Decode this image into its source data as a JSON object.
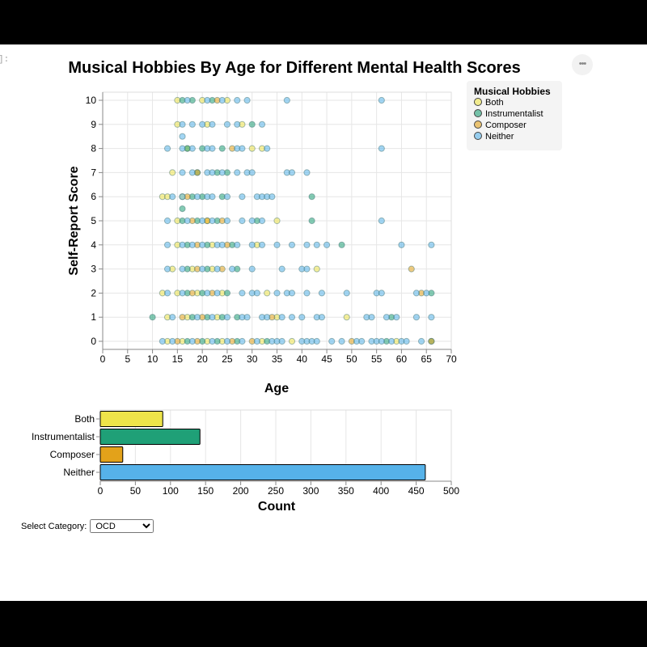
{
  "notebook": {
    "cell_prompt": "]:",
    "actions_label": "•••"
  },
  "colors": {
    "Both": "#eee44a",
    "Instrumentalist": "#1fa077",
    "Composer": "#e3a21a",
    "Neither": "#56b2e9"
  },
  "chart_data": [
    {
      "type": "scatter",
      "title": "Musical Hobbies By Age for Different Mental Health Scores",
      "xlabel": "Age",
      "ylabel": "Self-Report Score",
      "xlim": [
        0,
        70
      ],
      "ylim": [
        0,
        10
      ],
      "xticks": [
        0,
        5,
        10,
        15,
        20,
        25,
        30,
        35,
        40,
        45,
        50,
        55,
        60,
        65,
        70
      ],
      "yticks": [
        0,
        1,
        2,
        3,
        4,
        5,
        6,
        7,
        8,
        9,
        10
      ],
      "grid": true,
      "legend": {
        "title": "Musical Hobbies",
        "entries": [
          "Both",
          "Instrumentalist",
          "Composer",
          "Neither"
        ],
        "placement": "top-right"
      },
      "series": [
        {
          "name": "Both",
          "points": [
            [
              15,
              10
            ],
            [
              20,
              10
            ],
            [
              25,
              10
            ],
            [
              15,
              9
            ],
            [
              21,
              9
            ],
            [
              28,
              9
            ],
            [
              32,
              8
            ],
            [
              30,
              8
            ],
            [
              17,
              8
            ],
            [
              14,
              7
            ],
            [
              12,
              6
            ],
            [
              13,
              6
            ],
            [
              16,
              6
            ],
            [
              15,
              5
            ],
            [
              21,
              5
            ],
            [
              35,
              5
            ],
            [
              15,
              4
            ],
            [
              22,
              4
            ],
            [
              31,
              4
            ],
            [
              14,
              3
            ],
            [
              18,
              3
            ],
            [
              22,
              3
            ],
            [
              43,
              3
            ],
            [
              12,
              2
            ],
            [
              15,
              2
            ],
            [
              19,
              2
            ],
            [
              24,
              2
            ],
            [
              33,
              2
            ],
            [
              13,
              1
            ],
            [
              17,
              1
            ],
            [
              23,
              1
            ],
            [
              35,
              1
            ],
            [
              49,
              1
            ],
            [
              13,
              0
            ],
            [
              16,
              0
            ],
            [
              21,
              0
            ],
            [
              24,
              0
            ],
            [
              32,
              0
            ],
            [
              38,
              0
            ],
            [
              59,
              0
            ]
          ]
        },
        {
          "name": "Instrumentalist",
          "points": [
            [
              16,
              10
            ],
            [
              18,
              10
            ],
            [
              22,
              10
            ],
            [
              30,
              9
            ],
            [
              17,
              8
            ],
            [
              20,
              8
            ],
            [
              24,
              8
            ],
            [
              19,
              7
            ],
            [
              23,
              7
            ],
            [
              25,
              7
            ],
            [
              18,
              6
            ],
            [
              20,
              6
            ],
            [
              24,
              6
            ],
            [
              42,
              6
            ],
            [
              16,
              5.5
            ],
            [
              16,
              5
            ],
            [
              19,
              5
            ],
            [
              23,
              5
            ],
            [
              31,
              5
            ],
            [
              42,
              5
            ],
            [
              17,
              4
            ],
            [
              21,
              4
            ],
            [
              26,
              4
            ],
            [
              48,
              4
            ],
            [
              17,
              3
            ],
            [
              21,
              3
            ],
            [
              27,
              3
            ],
            [
              17,
              2
            ],
            [
              20,
              2
            ],
            [
              25,
              2
            ],
            [
              66,
              2
            ],
            [
              10,
              1
            ],
            [
              18,
              1
            ],
            [
              21,
              1
            ],
            [
              24,
              1
            ],
            [
              27,
              1
            ],
            [
              58,
              1
            ],
            [
              17,
              0
            ],
            [
              20,
              0
            ],
            [
              23,
              0
            ],
            [
              27,
              0
            ],
            [
              33,
              0
            ],
            [
              57,
              0
            ],
            [
              66,
              0
            ]
          ]
        },
        {
          "name": "Composer",
          "points": [
            [
              23,
              10
            ],
            [
              26,
              8
            ],
            [
              19,
              7
            ],
            [
              17,
              6
            ],
            [
              18,
              5
            ],
            [
              21,
              5
            ],
            [
              24,
              5
            ],
            [
              19,
              4
            ],
            [
              25,
              4
            ],
            [
              19,
              3
            ],
            [
              24,
              3
            ],
            [
              62,
              3
            ],
            [
              18,
              2
            ],
            [
              22,
              2
            ],
            [
              64,
              2
            ],
            [
              16,
              1
            ],
            [
              20,
              1
            ],
            [
              34,
              1
            ],
            [
              15,
              0
            ],
            [
              19,
              0
            ],
            [
              26,
              0
            ],
            [
              30,
              0
            ],
            [
              50,
              0
            ],
            [
              66,
              0
            ]
          ]
        },
        {
          "name": "Neither",
          "points": [
            [
              17,
              10
            ],
            [
              21,
              10
            ],
            [
              24,
              10
            ],
            [
              27,
              10
            ],
            [
              29,
              10
            ],
            [
              37,
              10
            ],
            [
              56,
              10
            ],
            [
              16,
              9
            ],
            [
              18,
              9
            ],
            [
              20,
              9
            ],
            [
              22,
              9
            ],
            [
              25,
              9
            ],
            [
              27,
              9
            ],
            [
              32,
              9
            ],
            [
              16,
              8.5
            ],
            [
              13,
              8
            ],
            [
              16,
              8
            ],
            [
              18,
              8
            ],
            [
              21,
              8
            ],
            [
              22,
              8
            ],
            [
              27,
              8
            ],
            [
              28,
              8
            ],
            [
              33,
              8
            ],
            [
              56,
              8
            ],
            [
              16,
              7
            ],
            [
              18,
              7
            ],
            [
              21,
              7
            ],
            [
              22,
              7
            ],
            [
              24,
              7
            ],
            [
              27,
              7
            ],
            [
              29,
              7
            ],
            [
              30,
              7
            ],
            [
              37,
              7
            ],
            [
              38,
              7
            ],
            [
              41,
              7
            ],
            [
              14,
              6
            ],
            [
              16,
              6
            ],
            [
              19,
              6
            ],
            [
              21,
              6
            ],
            [
              22,
              6
            ],
            [
              25,
              6
            ],
            [
              28,
              6
            ],
            [
              31,
              6
            ],
            [
              32,
              6
            ],
            [
              33,
              6
            ],
            [
              34,
              6
            ],
            [
              13,
              5
            ],
            [
              17,
              5
            ],
            [
              20,
              5
            ],
            [
              22,
              5
            ],
            [
              25,
              5
            ],
            [
              28,
              5
            ],
            [
              30,
              5
            ],
            [
              32,
              5
            ],
            [
              56,
              5
            ],
            [
              13,
              4
            ],
            [
              16,
              4
            ],
            [
              18,
              4
            ],
            [
              20,
              4
            ],
            [
              23,
              4
            ],
            [
              24,
              4
            ],
            [
              27,
              4
            ],
            [
              30,
              4
            ],
            [
              32,
              4
            ],
            [
              35,
              4
            ],
            [
              38,
              4
            ],
            [
              41,
              4
            ],
            [
              43,
              4
            ],
            [
              45,
              4
            ],
            [
              60,
              4
            ],
            [
              66,
              4
            ],
            [
              13,
              3
            ],
            [
              16,
              3
            ],
            [
              20,
              3
            ],
            [
              23,
              3
            ],
            [
              26,
              3
            ],
            [
              30,
              3
            ],
            [
              36,
              3
            ],
            [
              40,
              3
            ],
            [
              41,
              3
            ],
            [
              13,
              2
            ],
            [
              16,
              2
            ],
            [
              21,
              2
            ],
            [
              23,
              2
            ],
            [
              28,
              2
            ],
            [
              30,
              2
            ],
            [
              31,
              2
            ],
            [
              35,
              2
            ],
            [
              37,
              2
            ],
            [
              38,
              2
            ],
            [
              41,
              2
            ],
            [
              44,
              2
            ],
            [
              49,
              2
            ],
            [
              55,
              2
            ],
            [
              56,
              2
            ],
            [
              63,
              2
            ],
            [
              65,
              2
            ],
            [
              14,
              1
            ],
            [
              19,
              1
            ],
            [
              22,
              1
            ],
            [
              25,
              1
            ],
            [
              28,
              1
            ],
            [
              29,
              1
            ],
            [
              32,
              1
            ],
            [
              33,
              1
            ],
            [
              36,
              1
            ],
            [
              38,
              1
            ],
            [
              40,
              1
            ],
            [
              43,
              1
            ],
            [
              44,
              1
            ],
            [
              53,
              1
            ],
            [
              54,
              1
            ],
            [
              57,
              1
            ],
            [
              59,
              1
            ],
            [
              63,
              1
            ],
            [
              66,
              1
            ],
            [
              12,
              0
            ],
            [
              14,
              0
            ],
            [
              18,
              0
            ],
            [
              22,
              0
            ],
            [
              25,
              0
            ],
            [
              28,
              0
            ],
            [
              31,
              0
            ],
            [
              34,
              0
            ],
            [
              35,
              0
            ],
            [
              36,
              0
            ],
            [
              40,
              0
            ],
            [
              41,
              0
            ],
            [
              42,
              0
            ],
            [
              43,
              0
            ],
            [
              46,
              0
            ],
            [
              48,
              0
            ],
            [
              51,
              0
            ],
            [
              52,
              0
            ],
            [
              54,
              0
            ],
            [
              55,
              0
            ],
            [
              56,
              0
            ],
            [
              58,
              0
            ],
            [
              60,
              0
            ],
            [
              61,
              0
            ],
            [
              64,
              0
            ]
          ]
        }
      ]
    },
    {
      "type": "bar",
      "orientation": "horizontal",
      "xlabel": "Count",
      "ylabel": "",
      "xlim": [
        0,
        500
      ],
      "xticks": [
        0,
        50,
        100,
        150,
        200,
        250,
        300,
        350,
        400,
        450,
        500
      ],
      "categories": [
        "Both",
        "Instrumentalist",
        "Composer",
        "Neither"
      ],
      "values": [
        89,
        142,
        32,
        463
      ],
      "grid": true
    }
  ],
  "controls": {
    "select_label": "Select Category:",
    "select_value": "OCD",
    "select_options": [
      "OCD"
    ]
  }
}
